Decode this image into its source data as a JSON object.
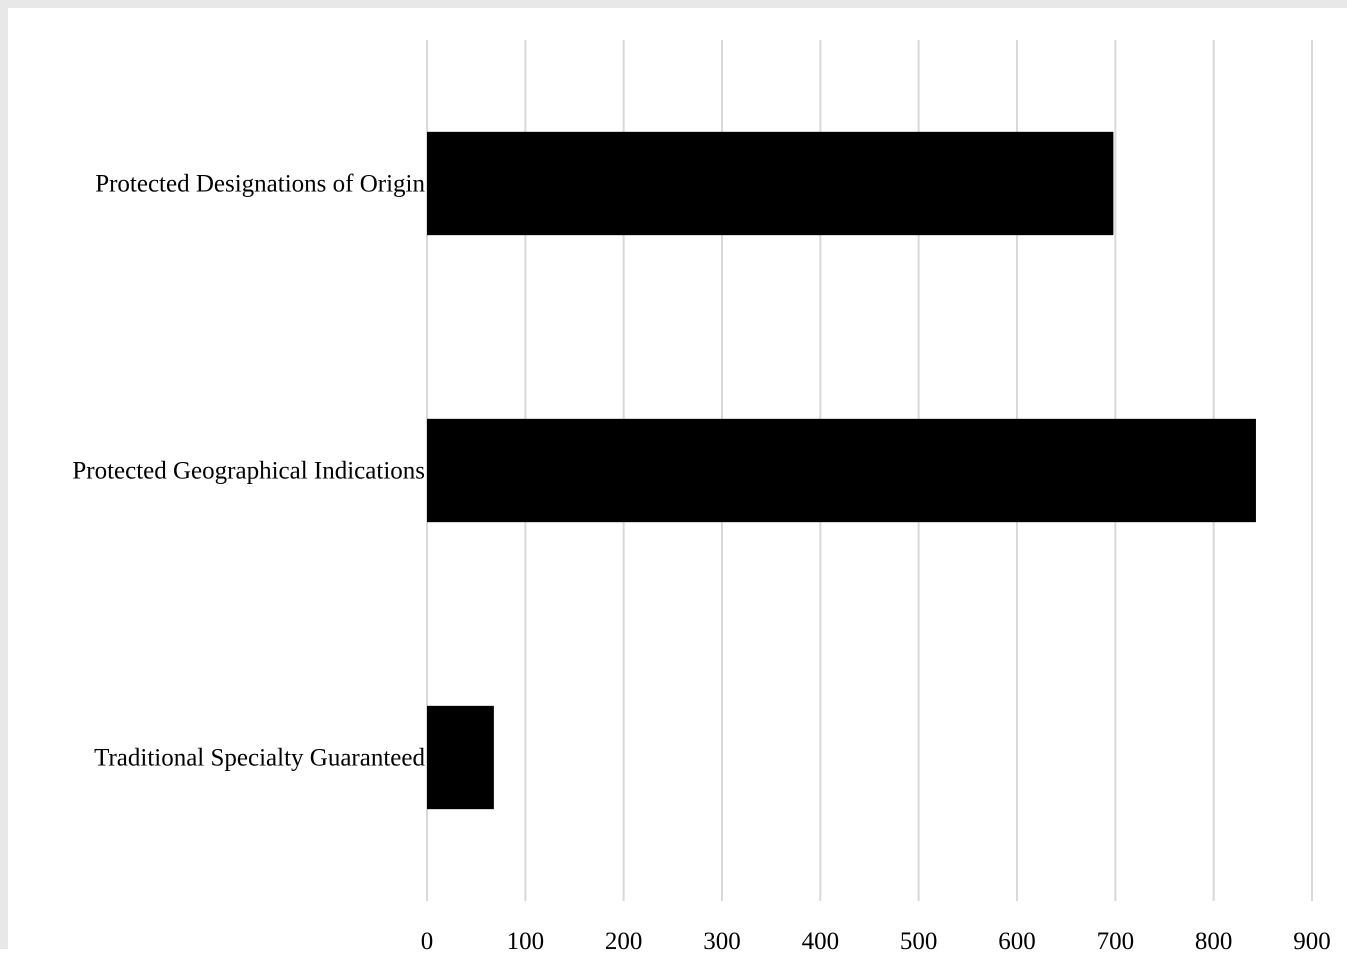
{
  "chart_data": {
    "type": "bar",
    "orientation": "horizontal",
    "title": "",
    "xlabel": "",
    "ylabel": "",
    "categories": [
      "Protected Designations of Origin",
      "Protected Geographical Indications",
      "Traditional Specialty Guaranteed"
    ],
    "values": [
      698,
      843,
      68
    ],
    "xlim": [
      0,
      900
    ],
    "xticks": [
      "0",
      "100",
      "200",
      "300",
      "400",
      "500",
      "600",
      "700",
      "800",
      "900"
    ],
    "grid": "vertical",
    "legend": "none",
    "colors": {
      "bar": "#000000",
      "grid": "#d9d9d9",
      "frame": "#e8e8e8"
    }
  }
}
